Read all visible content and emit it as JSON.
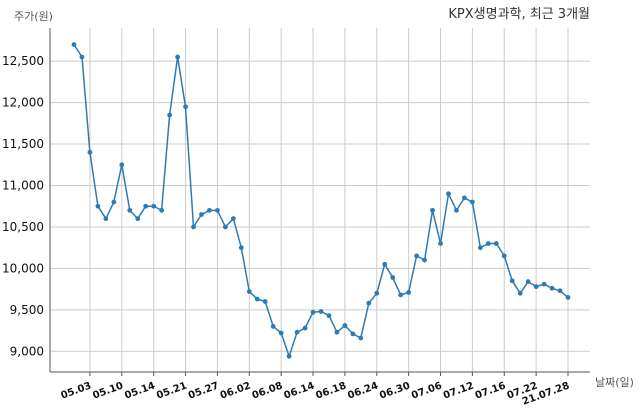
{
  "chart_data": {
    "type": "line",
    "title": "KPX생명과학, 최근 3개월",
    "ylabel": "주가(원)",
    "xlabel": "날짜(일)",
    "ylim": [
      8750,
      12900
    ],
    "yticks": [
      9000,
      9500,
      10000,
      10500,
      11000,
      11500,
      12000,
      12500
    ],
    "ytick_labels": [
      "9,000",
      "9,500",
      "10,000",
      "10,500",
      "11,000",
      "11,500",
      "12,000",
      "12,500"
    ],
    "xtick_labels": [
      "05.03",
      "05.10",
      "05.14",
      "05.21",
      "05.27",
      "06.02",
      "06.08",
      "06.14",
      "06.18",
      "06.24",
      "06.30",
      "07.06",
      "07.12",
      "07.16",
      "07.22",
      "21.07.28"
    ],
    "xtick_index": [
      2,
      6,
      10,
      14,
      18,
      22,
      26,
      30,
      34,
      38,
      42,
      46,
      50,
      54,
      58,
      62
    ],
    "grid": true,
    "legend": "none",
    "color": "#2e7bb4",
    "series": [
      {
        "values": [
          12700,
          12550,
          11400,
          10750,
          10600,
          10800,
          11250,
          10700,
          10600,
          10750,
          10750,
          10700,
          11850,
          12550,
          11950,
          10500,
          10650,
          10700,
          10700,
          10500,
          10600,
          10250,
          9720,
          9630,
          9600,
          9300,
          9220,
          8940,
          9230,
          9280,
          9470,
          9480,
          9430,
          9230,
          9310,
          9210,
          9160,
          9580,
          9700,
          10050,
          9890,
          9680,
          9710,
          10150,
          10100,
          10700,
          10300,
          10900,
          10700,
          10850,
          10800,
          10250,
          10300,
          10300,
          10150,
          9850,
          9700,
          9840,
          9780,
          9810,
          9760,
          9730,
          9650
        ]
      }
    ]
  }
}
